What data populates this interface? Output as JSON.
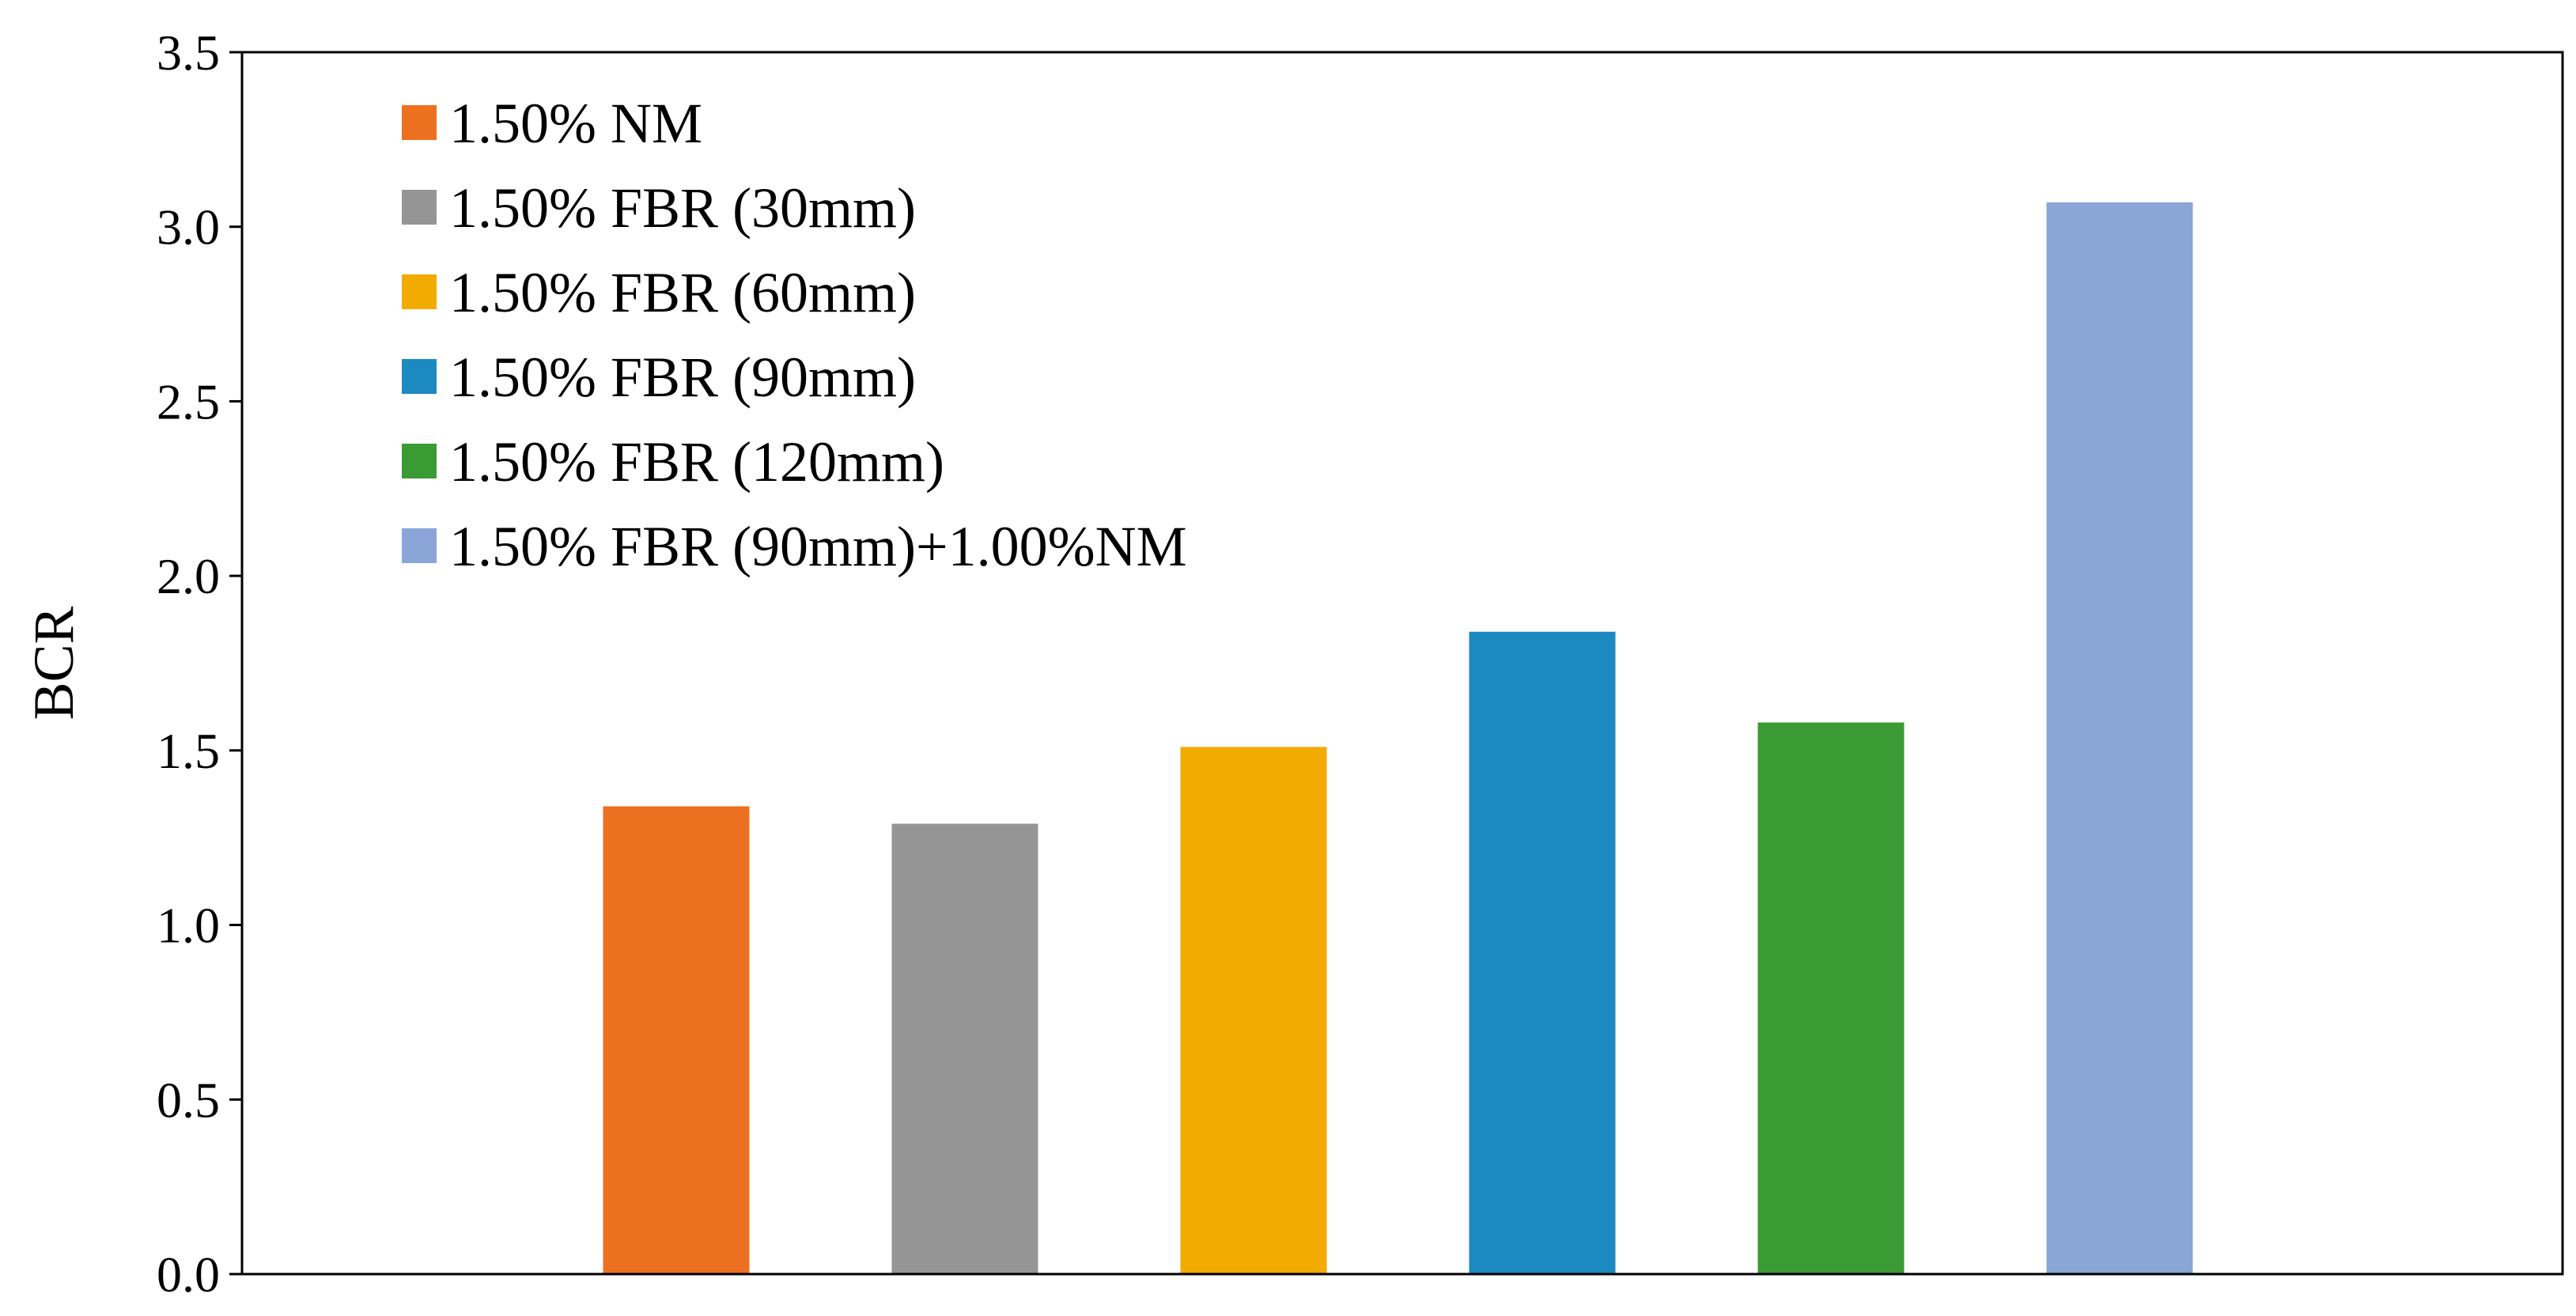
{
  "chart_data": {
    "type": "bar",
    "title": "",
    "xlabel": "",
    "ylabel": "BCR",
    "ylim": [
      0,
      3.5
    ],
    "yticks": [
      "0.0",
      "0.5",
      "1.0",
      "1.5",
      "2.0",
      "2.5",
      "3.0",
      "3.5"
    ],
    "grid": false,
    "legend_position": "top-left",
    "series": [
      {
        "name": "1.50% NM",
        "value": 1.34,
        "color": "#ED7020"
      },
      {
        "name": "1.50% FBR (30mm)",
        "value": 1.29,
        "color": "#959595"
      },
      {
        "name": "1.50% FBR (60mm)",
        "value": 1.51,
        "color": "#F2AB00"
      },
      {
        "name": "1.50% FBR (90mm)",
        "value": 1.84,
        "color": "#1A8AC0"
      },
      {
        "name": "1.50% FBR (120mm)",
        "value": 1.58,
        "color": "#3A9A33"
      },
      {
        "name": "1.50% FBR (90mm)+1.00%NM",
        "value": 3.07,
        "color": "#8AA6D8"
      }
    ]
  }
}
